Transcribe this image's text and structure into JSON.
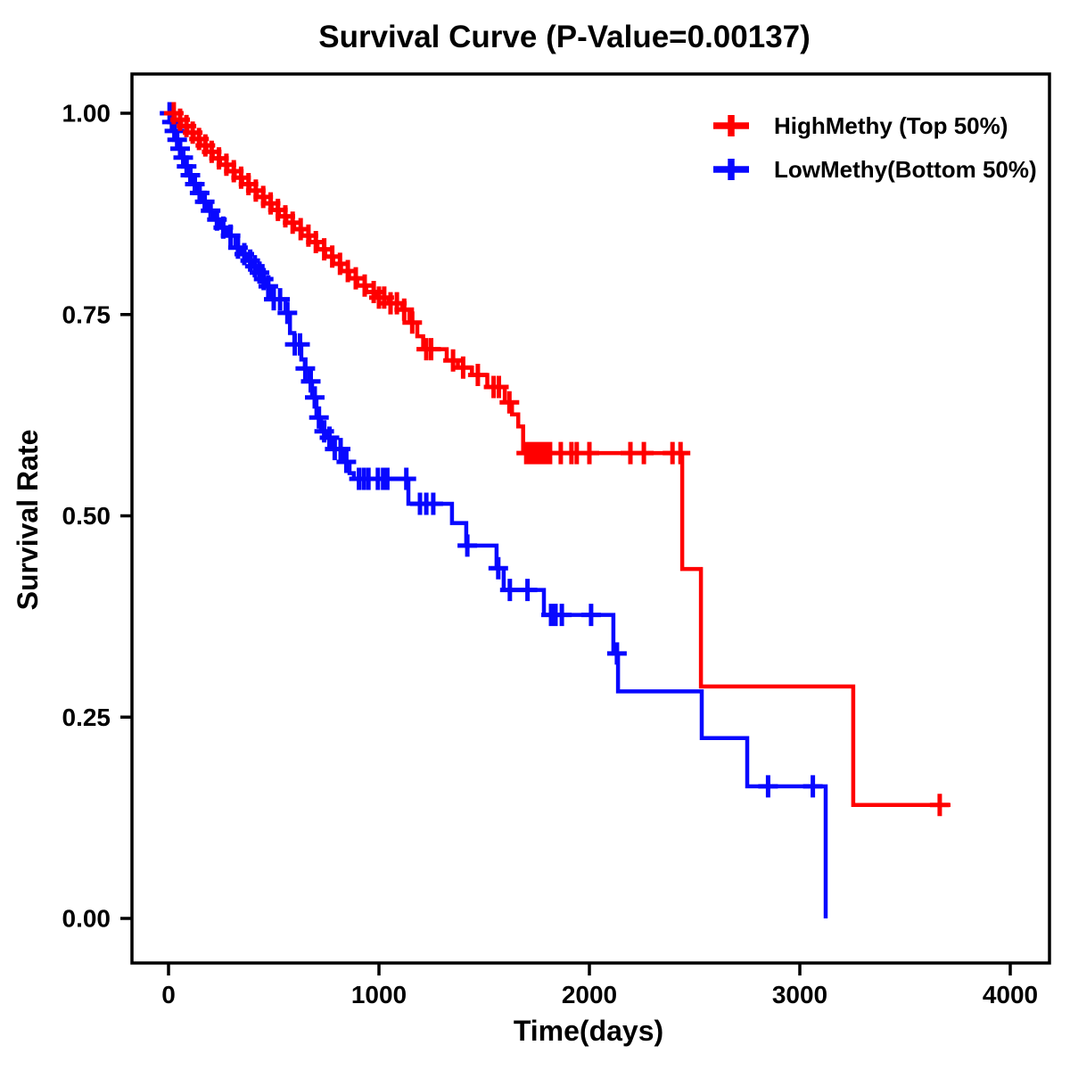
{
  "chart_data": {
    "type": "line",
    "subtype": "kaplan-meier-step-survival",
    "title": "Survival Curve (P-Value=0.00137)",
    "p_value_shown": "0.00137",
    "xlabel": "Time(days)",
    "ylabel": "Survival Rate",
    "x_ticks": [
      {
        "v": 0,
        "label": "0"
      },
      {
        "v": 1000,
        "label": "1000"
      },
      {
        "v": 2000,
        "label": "2000"
      },
      {
        "v": 3000,
        "label": "3000"
      },
      {
        "v": 4000,
        "label": "4000"
      }
    ],
    "y_ticks": [
      {
        "v": 0.0,
        "label": "0.00"
      },
      {
        "v": 0.25,
        "label": "0.25"
      },
      {
        "v": 0.5,
        "label": "0.50"
      },
      {
        "v": 0.75,
        "label": "0.75"
      },
      {
        "v": 1.0,
        "label": "1.00"
      }
    ],
    "xlim": [
      -175,
      4190
    ],
    "ylim": [
      -0.05,
      1.05
    ],
    "grid": false,
    "legend_position": "top-right-inside",
    "series": [
      {
        "name": "LowMethy(Bottom 50%)",
        "color": "#0808FF",
        "start": [
          0,
          1.0
        ],
        "drops": [
          [
            10,
            0.989
          ],
          [
            22,
            0.978
          ],
          [
            35,
            0.967
          ],
          [
            48,
            0.956
          ],
          [
            62,
            0.945
          ],
          [
            78,
            0.934
          ],
          [
            95,
            0.923
          ],
          [
            115,
            0.912
          ],
          [
            138,
            0.901
          ],
          [
            162,
            0.89
          ],
          [
            188,
            0.879
          ],
          [
            215,
            0.868
          ],
          [
            245,
            0.858
          ],
          [
            278,
            0.848
          ],
          [
            318,
            0.833
          ],
          [
            345,
            0.825
          ],
          [
            375,
            0.817
          ],
          [
            398,
            0.81
          ],
          [
            420,
            0.802
          ],
          [
            442,
            0.794
          ],
          [
            458,
            0.785
          ],
          [
            480,
            0.769
          ],
          [
            556,
            0.752
          ],
          [
            577,
            0.727
          ],
          [
            598,
            0.713
          ],
          [
            631,
            0.694
          ],
          [
            648,
            0.683
          ],
          [
            669,
            0.667
          ],
          [
            682,
            0.647
          ],
          [
            703,
            0.622
          ],
          [
            724,
            0.605
          ],
          [
            758,
            0.597
          ],
          [
            780,
            0.583
          ],
          [
            830,
            0.567
          ],
          [
            860,
            0.553
          ],
          [
            881,
            0.546
          ],
          [
            1140,
            0.515
          ],
          [
            1347,
            0.491
          ],
          [
            1415,
            0.463
          ],
          [
            1559,
            0.435
          ],
          [
            1593,
            0.408
          ],
          [
            1784,
            0.377
          ],
          [
            2114,
            0.329
          ],
          [
            2136,
            0.282
          ],
          [
            2534,
            0.224
          ],
          [
            2750,
            0.164
          ],
          [
            3123,
            0.0
          ]
        ],
        "end_time": 3123,
        "censor_times": [
          5,
          16,
          28,
          41,
          55,
          70,
          86,
          104,
          125,
          148,
          172,
          200,
          230,
          260,
          295,
          330,
          360,
          388,
          410,
          432,
          452,
          474,
          500,
          530,
          565,
          600,
          625,
          650,
          676,
          695,
          715,
          740,
          765,
          790,
          818,
          845,
          905,
          928,
          950,
          995,
          1020,
          1040,
          1130,
          1195,
          1225,
          1258,
          1420,
          1567,
          1622,
          1706,
          1818,
          1839,
          1869,
          2008,
          2131,
          2849,
          3062
        ]
      },
      {
        "name": "HighMethy (Top 50%)",
        "color": "#FF0000",
        "start": [
          0,
          1.0
        ],
        "drops": [
          [
            30,
            0.992
          ],
          [
            60,
            0.984
          ],
          [
            90,
            0.976
          ],
          [
            120,
            0.968
          ],
          [
            150,
            0.96
          ],
          [
            180,
            0.952
          ],
          [
            210,
            0.944
          ],
          [
            245,
            0.936
          ],
          [
            280,
            0.928
          ],
          [
            315,
            0.92
          ],
          [
            350,
            0.912
          ],
          [
            385,
            0.904
          ],
          [
            420,
            0.896
          ],
          [
            455,
            0.888
          ],
          [
            490,
            0.88
          ],
          [
            525,
            0.872
          ],
          [
            560,
            0.864
          ],
          [
            597,
            0.856
          ],
          [
            633,
            0.848
          ],
          [
            670,
            0.84
          ],
          [
            708,
            0.831
          ],
          [
            745,
            0.822
          ],
          [
            783,
            0.813
          ],
          [
            820,
            0.804
          ],
          [
            858,
            0.795
          ],
          [
            897,
            0.786
          ],
          [
            940,
            0.778
          ],
          [
            981,
            0.771
          ],
          [
            1046,
            0.764
          ],
          [
            1110,
            0.756
          ],
          [
            1145,
            0.74
          ],
          [
            1182,
            0.723
          ],
          [
            1210,
            0.707
          ],
          [
            1322,
            0.693
          ],
          [
            1375,
            0.684
          ],
          [
            1442,
            0.675
          ],
          [
            1515,
            0.66
          ],
          [
            1598,
            0.641
          ],
          [
            1632,
            0.626
          ],
          [
            1662,
            0.611
          ],
          [
            1685,
            0.578
          ],
          [
            2441,
            0.434
          ],
          [
            2530,
            0.288
          ],
          [
            3254,
            0.141
          ]
        ],
        "end_time": 3716,
        "censor_times": [
          25,
          55,
          85,
          115,
          145,
          175,
          205,
          240,
          275,
          310,
          345,
          380,
          415,
          450,
          485,
          520,
          555,
          590,
          628,
          665,
          700,
          740,
          778,
          815,
          852,
          890,
          932,
          975,
          1000,
          1025,
          1055,
          1085,
          1120,
          1158,
          1225,
          1248,
          1352,
          1400,
          1470,
          1545,
          1570,
          1620,
          1700,
          1716,
          1732,
          1748,
          1764,
          1780,
          1797,
          1813,
          1864,
          1915,
          1940,
          2000,
          2195,
          2259,
          2395,
          2433,
          3665
        ]
      }
    ]
  }
}
